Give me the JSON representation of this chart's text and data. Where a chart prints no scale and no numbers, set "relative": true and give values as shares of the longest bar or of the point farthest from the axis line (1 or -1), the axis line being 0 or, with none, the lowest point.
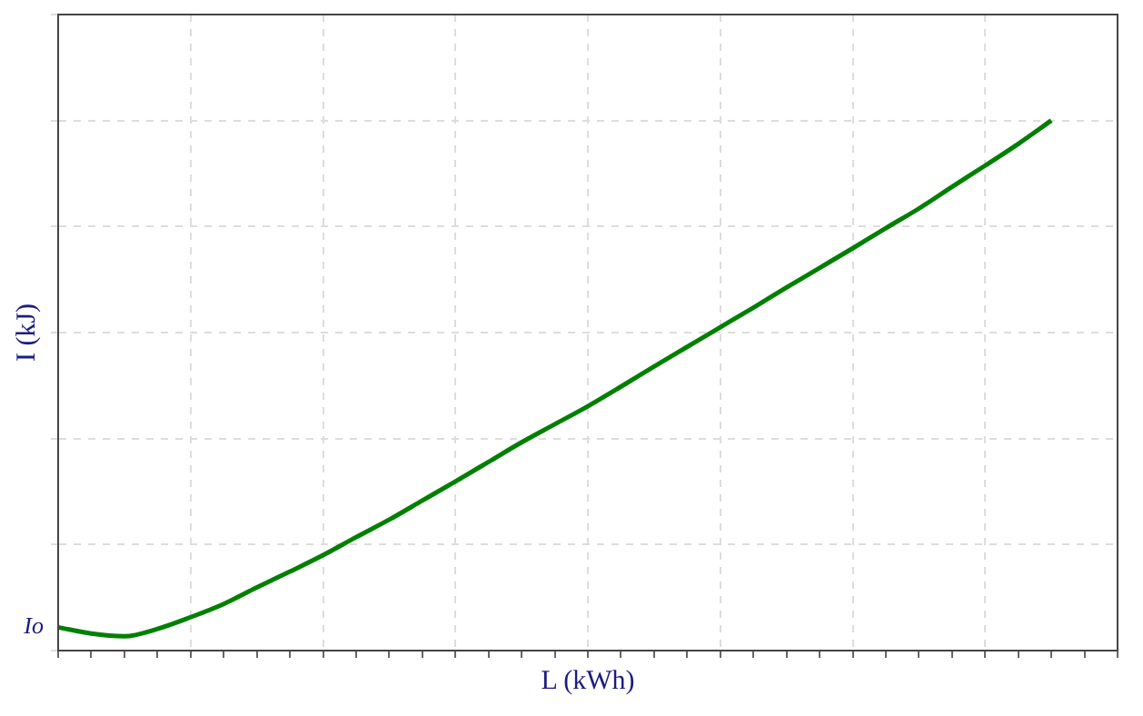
{
  "chart_data": {
    "type": "line",
    "relative": true,
    "xlabel": "L (kWh)",
    "ylabel": "I (kJ)",
    "grid": true,
    "legend": false,
    "marker": "none",
    "line_style": "solid",
    "categories": [
      null,
      null,
      null,
      null,
      null,
      null,
      null,
      null,
      null,
      null,
      null,
      null,
      null,
      null,
      null,
      null,
      null,
      null,
      null,
      null,
      null,
      null,
      null,
      null,
      null,
      null,
      null,
      null,
      null,
      null,
      null,
      null,
      null
    ],
    "series": [
      {
        "color": "#008000",
        "values": [
          0.044,
          0.032,
          0.027,
          0.041,
          0.063,
          0.088,
          0.119,
          0.149,
          0.18,
          0.214,
          0.247,
          0.283,
          0.319,
          0.356,
          0.393,
          0.427,
          0.461,
          0.498,
          0.536,
          0.573,
          0.61,
          0.647,
          0.685,
          0.722,
          0.759,
          0.797,
          0.834,
          0.875,
          0.915,
          0.956,
          1,
          null,
          null
        ]
      }
    ],
    "annotations": [
      "Io"
    ]
  }
}
